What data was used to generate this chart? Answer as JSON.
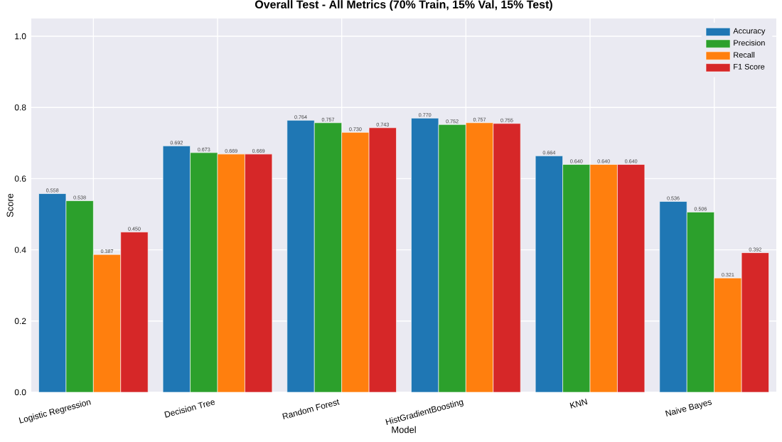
{
  "chart_data": {
    "type": "bar",
    "title": "Overall Test - All Metrics (70% Train, 15% Val, 15% Test)",
    "xlabel": "Model",
    "ylabel": "Score",
    "categories": [
      "Logistic Regression",
      "Decision Tree",
      "Random Forest",
      "HistGradientBoosting",
      "KNN",
      "Naive Bayes"
    ],
    "series": [
      {
        "name": "Accuracy",
        "color": "#1f77b4",
        "values": [
          0.558,
          0.692,
          0.764,
          0.77,
          0.664,
          0.536
        ],
        "value_labels": [
          "0.558",
          "0.692",
          "0.764",
          "0.770",
          "0.664",
          "0.536"
        ]
      },
      {
        "name": "Precision",
        "color": "#2ca02c",
        "values": [
          0.538,
          0.673,
          0.757,
          0.752,
          0.64,
          0.506
        ],
        "value_labels": [
          "0.538",
          "0.673",
          "0.757",
          "0.752",
          "0.640",
          "0.506"
        ]
      },
      {
        "name": "Recall",
        "color": "#ff7f0e",
        "values": [
          0.387,
          0.669,
          0.73,
          0.757,
          0.64,
          0.321
        ],
        "value_labels": [
          "0.387",
          "0.669",
          "0.730",
          "0.757",
          "0.640",
          "0.321"
        ]
      },
      {
        "name": "F1 Score",
        "color": "#d62728",
        "values": [
          0.45,
          0.669,
          0.743,
          0.755,
          0.64,
          0.392
        ],
        "value_labels": [
          "0.450",
          "0.669",
          "0.743",
          "0.755",
          "0.640",
          "0.392"
        ]
      }
    ],
    "ylim": [
      0,
      1.05
    ],
    "yticks": [
      {
        "value": 0,
        "label": "0.0"
      },
      0.2,
      0.4,
      0.6,
      0.8,
      {
        "value": 1,
        "label": "1.0"
      }
    ],
    "grid": true,
    "legend": "top right"
  }
}
